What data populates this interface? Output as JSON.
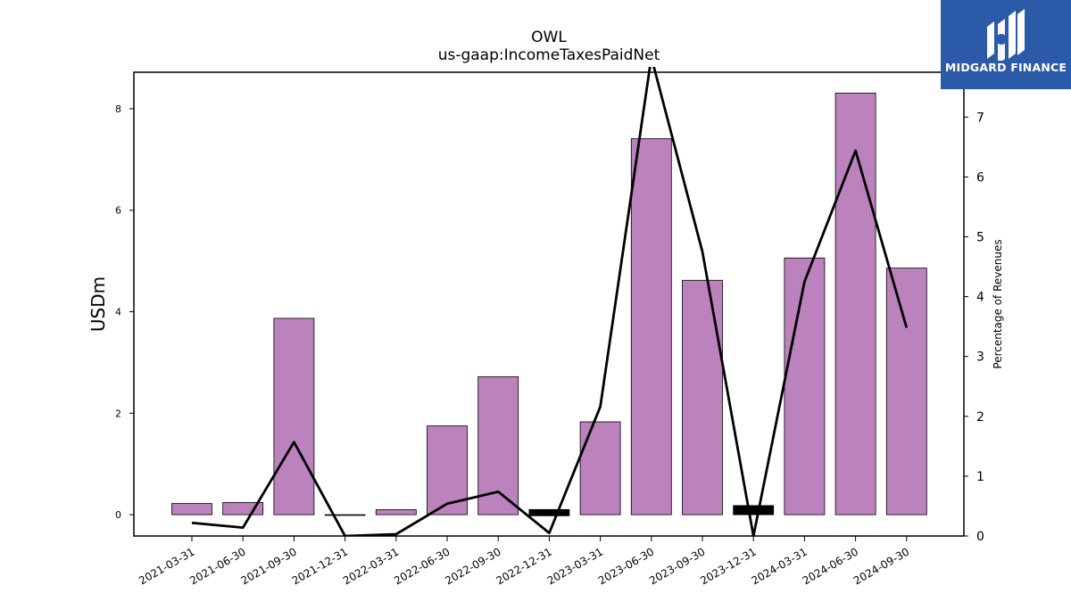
{
  "chart_data": {
    "type": "bar",
    "title": "OWL",
    "subtitle": "us-gaap:IncomeTaxesPaidNet",
    "ylabel": "USDm",
    "y2label": "Percentage of Revenues",
    "categories": [
      "2021-03-31",
      "2021-06-30",
      "2021-09-30",
      "2021-12-31",
      "2022-03-31",
      "2022-06-30",
      "2022-09-30",
      "2022-12-31",
      "2023-03-31",
      "2023-06-30",
      "2023-09-30",
      "2023-12-31",
      "2024-03-31",
      "2024-06-30",
      "2024-09-30"
    ],
    "series": [
      {
        "chart": "bar",
        "axis": "left",
        "values": [
          0.22,
          0.24,
          3.87,
          -0.01,
          0.1,
          1.75,
          2.72,
          0.08,
          1.83,
          7.41,
          4.62,
          0.18,
          5.06,
          8.31,
          4.86
        ],
        "highlight": [
          false,
          false,
          false,
          false,
          false,
          false,
          false,
          true,
          false,
          false,
          false,
          true,
          false,
          false,
          false
        ]
      },
      {
        "chart": "line",
        "axis": "right",
        "values": [
          0.22,
          0.14,
          1.57,
          0.0,
          0.03,
          0.54,
          0.74,
          0.05,
          2.16,
          8.0,
          4.75,
          0.0,
          4.25,
          6.44,
          3.48
        ]
      }
    ],
    "ylim": [
      -0.42,
      8.72
    ],
    "y_ticks": [
      0,
      2,
      4,
      6,
      8
    ],
    "y2lim": [
      0,
      7.75
    ],
    "y2_ticks": [
      0,
      1,
      2,
      3,
      4,
      5,
      6,
      7
    ],
    "grid": false,
    "colors": {
      "bar": "#bc82bd",
      "highlight": "#000000",
      "line": "#000000"
    }
  },
  "logo": {
    "text": "MIDGARD FINANCE",
    "background": "#2b5aa8"
  }
}
